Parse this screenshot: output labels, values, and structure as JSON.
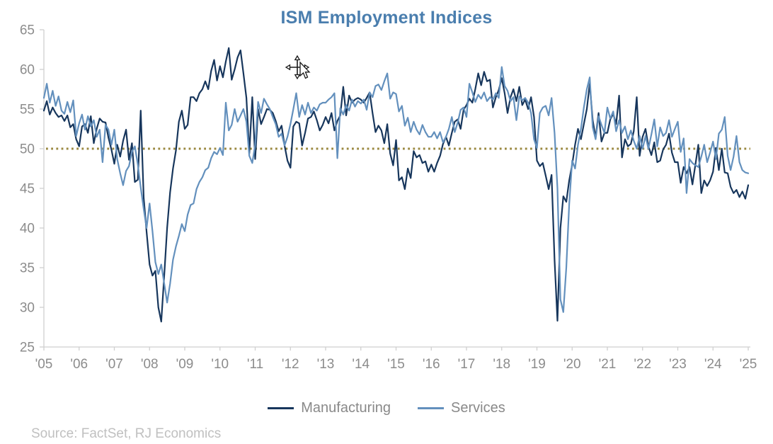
{
  "title": "ISM Employment Indices",
  "title_color": "#4a7eae",
  "source": "Source: FactSet, RJ Economics",
  "axis": {
    "text_color": "#8c8c8c",
    "line_color": "#cfcfcf",
    "y_ticks": [
      65,
      60,
      55,
      50,
      45,
      40,
      35,
      30,
      25
    ],
    "x_tick_labels": [
      "'05",
      "'06",
      "'07",
      "'08",
      "'09",
      "'10",
      "'11",
      "'12",
      "'13",
      "'14",
      "'15",
      "'16",
      "'17",
      "'18",
      "'19",
      "'20",
      "'21",
      "'22",
      "'23",
      "'24",
      "'25"
    ]
  },
  "legend": {
    "items": [
      {
        "label": "Manufacturing",
        "color": "#17365c"
      },
      {
        "label": "Services",
        "color": "#6390bd"
      }
    ]
  },
  "chart_data": {
    "type": "line",
    "title": "ISM Employment Indices",
    "xlabel": "",
    "ylabel": "",
    "ylim": [
      25,
      65
    ],
    "x_range_years": [
      2005,
      2025
    ],
    "frequency": "monthly",
    "grid": false,
    "legend_position": "bottom",
    "reference_line": {
      "value": 50,
      "style": "dotted",
      "color": "#9a8840"
    },
    "series": [
      {
        "name": "Manufacturing",
        "color": "#17365c",
        "values": [
          54.8,
          56.0,
          54.3,
          55.2,
          54.5,
          54.0,
          54.2,
          53.5,
          54.2,
          52.7,
          53.1,
          51.2,
          50.3,
          52.8,
          53.1,
          52.0,
          54.1,
          50.7,
          52.5,
          53.8,
          53.4,
          53.3,
          51.4,
          49.9,
          48.1,
          50.5,
          49.0,
          51.0,
          52.4,
          48.6,
          50.7,
          45.8,
          46.1,
          54.8,
          43.8,
          39.5,
          35.4,
          34.0,
          34.6,
          30.0,
          28.2,
          34.0,
          40.0,
          44.5,
          47.5,
          49.8,
          53.4,
          54.8,
          52.5,
          53.0,
          56.5,
          56.5,
          56.0,
          57.0,
          57.5,
          58.5,
          57.5,
          59.8,
          61.2,
          58.6,
          60.4,
          59.0,
          61.0,
          62.7,
          58.7,
          60.0,
          61.5,
          62.4,
          59.5,
          56.4,
          49.4,
          56.5,
          48.7,
          55.0,
          53.1,
          54.0,
          55.0,
          54.9,
          54.5,
          53.5,
          52.2,
          52.9,
          50.4,
          48.5,
          47.6,
          52.8,
          53.4,
          53.2,
          50.4,
          52.0,
          53.8,
          54.0,
          54.7,
          53.6,
          52.3,
          53.0,
          54.0,
          53.2,
          54.5,
          52.3,
          53.5,
          54.2,
          57.8,
          54.2,
          56.7,
          55.8,
          56.2,
          56.4,
          56.2,
          55.8,
          56.4,
          57.1,
          54.5,
          52.1,
          52.9,
          52.3,
          50.7,
          53.1,
          49.4,
          47.9,
          51.1,
          46.0,
          46.4,
          44.9,
          47.5,
          46.3,
          49.7,
          48.9,
          49.2,
          48.2,
          48.4,
          47.1,
          48.0,
          47.1,
          48.2,
          49.1,
          50.6,
          51.5,
          50.4,
          52.0,
          53.4,
          53.7,
          52.5,
          54.9,
          55.5,
          56.3,
          55.8,
          57.5,
          59.5,
          58.0,
          59.7,
          58.5,
          58.7,
          55.2,
          56.5,
          57.4,
          58.9,
          57.0,
          54.5,
          56.5,
          57.5,
          56.0,
          57.8,
          55.5,
          56.2,
          55.0,
          56.5,
          54.0,
          48.5,
          47.8,
          48.2,
          46.6,
          44.9,
          46.7,
          36.0,
          28.3,
          40.0,
          44.0,
          43.3,
          46.0,
          48.0,
          50.5,
          52.5,
          51.2,
          53.1,
          55.0,
          58.2,
          53.6,
          51.4,
          54.5,
          50.9,
          52.0,
          52.0,
          53.7,
          54.4,
          53.1,
          56.7,
          48.9,
          51.2,
          50.3,
          50.6,
          52.2,
          56.5,
          49.1,
          51.5,
          52.5,
          50.3,
          49.2,
          50.8,
          48.3,
          48.5,
          49.9,
          50.5,
          51.9,
          49.5,
          48.3,
          48.3,
          45.7,
          47.7,
          46.9,
          47.7,
          45.5,
          48.0,
          50.5,
          44.4,
          46.0,
          45.3,
          46.0,
          47.1,
          50.1,
          47.3,
          50.0,
          47.0,
          46.9,
          45.2,
          44.4,
          44.8,
          43.9,
          44.6,
          43.7,
          45.4
        ]
      },
      {
        "name": "Services",
        "color": "#6390bd",
        "values": [
          56.4,
          58.2,
          55.8,
          57.3,
          55.4,
          56.6,
          54.8,
          54.4,
          55.9,
          54.6,
          56.1,
          51.6,
          53.2,
          54.3,
          52.4,
          54.1,
          52.8,
          53.6,
          51.5,
          52.4,
          48.3,
          53.0,
          52.4,
          50.5,
          52.4,
          48.7,
          46.9,
          45.4,
          47.2,
          47.8,
          49.6,
          50.3,
          48.0,
          45.1,
          42.4,
          40.0,
          43.1,
          39.6,
          35.7,
          34.2,
          35.4,
          33.0,
          30.6,
          33.0,
          36.0,
          37.7,
          39.0,
          40.5,
          39.6,
          41.7,
          42.9,
          43.1,
          44.9,
          45.8,
          46.4,
          47.3,
          47.6,
          48.8,
          49.6,
          49.3,
          50.1,
          49.2,
          55.8,
          52.3,
          53.0,
          55.0,
          53.4,
          54.2,
          55.0,
          53.4,
          49.1,
          48.2,
          50.5,
          55.9,
          54.5,
          56.3,
          55.6,
          55.0,
          54.0,
          53.1,
          51.5,
          51.9,
          50.4,
          51.5,
          53.1,
          55.0,
          57.0,
          54.0,
          55.5,
          54.3,
          55.8,
          54.5,
          55.2,
          54.8,
          55.6,
          55.8,
          55.8,
          56.2,
          56.5,
          57.0,
          48.8,
          55.1,
          54.3,
          55.5,
          54.8,
          56.2,
          55.3,
          56.0,
          55.7,
          56.2,
          54.9,
          57.1,
          56.5,
          57.9,
          58.1,
          57.4,
          58.5,
          59.5,
          56.3,
          57.1,
          56.9,
          54.7,
          55.4,
          52.9,
          53.9,
          52.1,
          53.4,
          52.4,
          51.8,
          53.0,
          52.1,
          51.5,
          51.5,
          52.1,
          51.3,
          52.1,
          50.8,
          51.5,
          52.5,
          54.0,
          52.1,
          53.3,
          54.9,
          55.2,
          54.0,
          58.2,
          57.1,
          55.9,
          56.8,
          56.3,
          57.1,
          56.0,
          56.5,
          56.2,
          57.0,
          56.4,
          60.3,
          57.9,
          57.3,
          56.0,
          56.5,
          53.6,
          56.6,
          56.1,
          56.4,
          55.8,
          54.5,
          51.2,
          50.1,
          54.5,
          55.2,
          55.4,
          54.2,
          56.4,
          52.0,
          45.0,
          31.0,
          29.4,
          35.0,
          43.0,
          48.5,
          47.5,
          50.5,
          52.5,
          55.2,
          57.5,
          59.0,
          52.7,
          51.2,
          54.1,
          53.0,
          52.0,
          55.2,
          53.8,
          54.7,
          52.2,
          53.6,
          52.0,
          52.8,
          51.2,
          52.3,
          51.0,
          50.0,
          51.6,
          50.0,
          51.6,
          50.0,
          51.8,
          53.7,
          50.3,
          52.7,
          51.6,
          52.0,
          53.6,
          51.5,
          52.5,
          53.4,
          49.6,
          51.3,
          44.4,
          48.7,
          48.2,
          47.9,
          47.7,
          49.0,
          50.5,
          48.3,
          49.5,
          50.9,
          48.7,
          51.9,
          52.4,
          54.0,
          49.1,
          47.3,
          49.0,
          51.6,
          48.3,
          47.3,
          47.0,
          46.9
        ]
      }
    ]
  }
}
